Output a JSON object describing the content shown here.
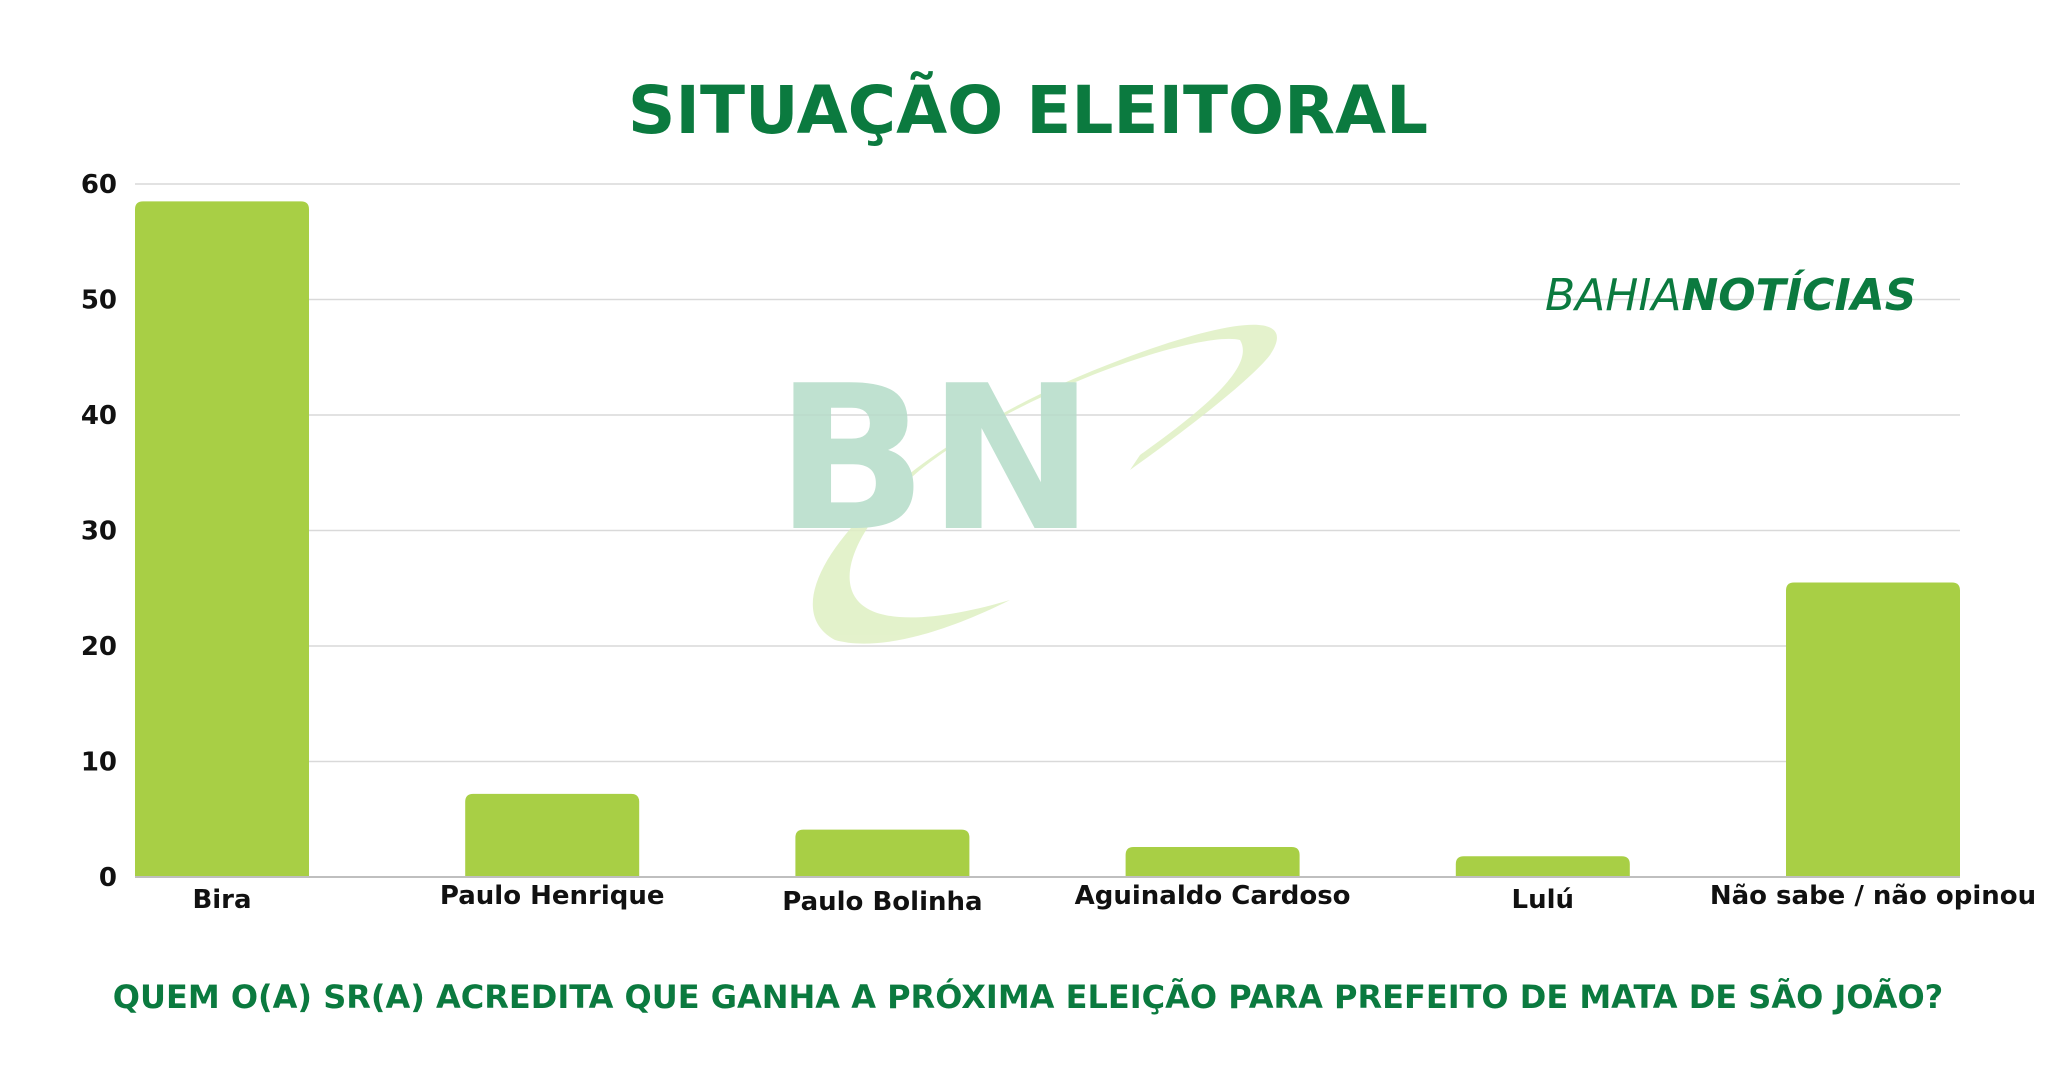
{
  "chart_data": {
    "type": "bar",
    "title": "SITUAÇÃO ELEITORAL",
    "xlabel": "",
    "ylabel": "",
    "question": "QUEM O(A) SR(A) ACREDITA QUE GANHA A PRÓXIMA ELEIÇÃO PARA PREFEITO DE MATA DE SÃO JOÃO?",
    "categories": [
      "Bira",
      "Paulo Henrique",
      "Paulo Bolinha",
      "Aguinaldo Cardoso",
      "Lulú",
      "Não sabe / não opinou"
    ],
    "values": [
      58.5,
      7.2,
      4.1,
      2.6,
      1.8,
      25.5
    ],
    "ylim": [
      0,
      60
    ],
    "yticks": [
      0,
      10,
      20,
      30,
      40,
      50,
      60
    ],
    "ytick_labels": [
      "0",
      "10",
      "20",
      "30",
      "40",
      "50",
      "60"
    ],
    "grid": true,
    "legend": "none",
    "bar_color": "#a8cf45",
    "title_color": "#0b7a3f"
  },
  "branding": {
    "watermark_text": "BN",
    "logo_light": "BAHIA",
    "logo_bold": "NOTÍCIAS"
  }
}
